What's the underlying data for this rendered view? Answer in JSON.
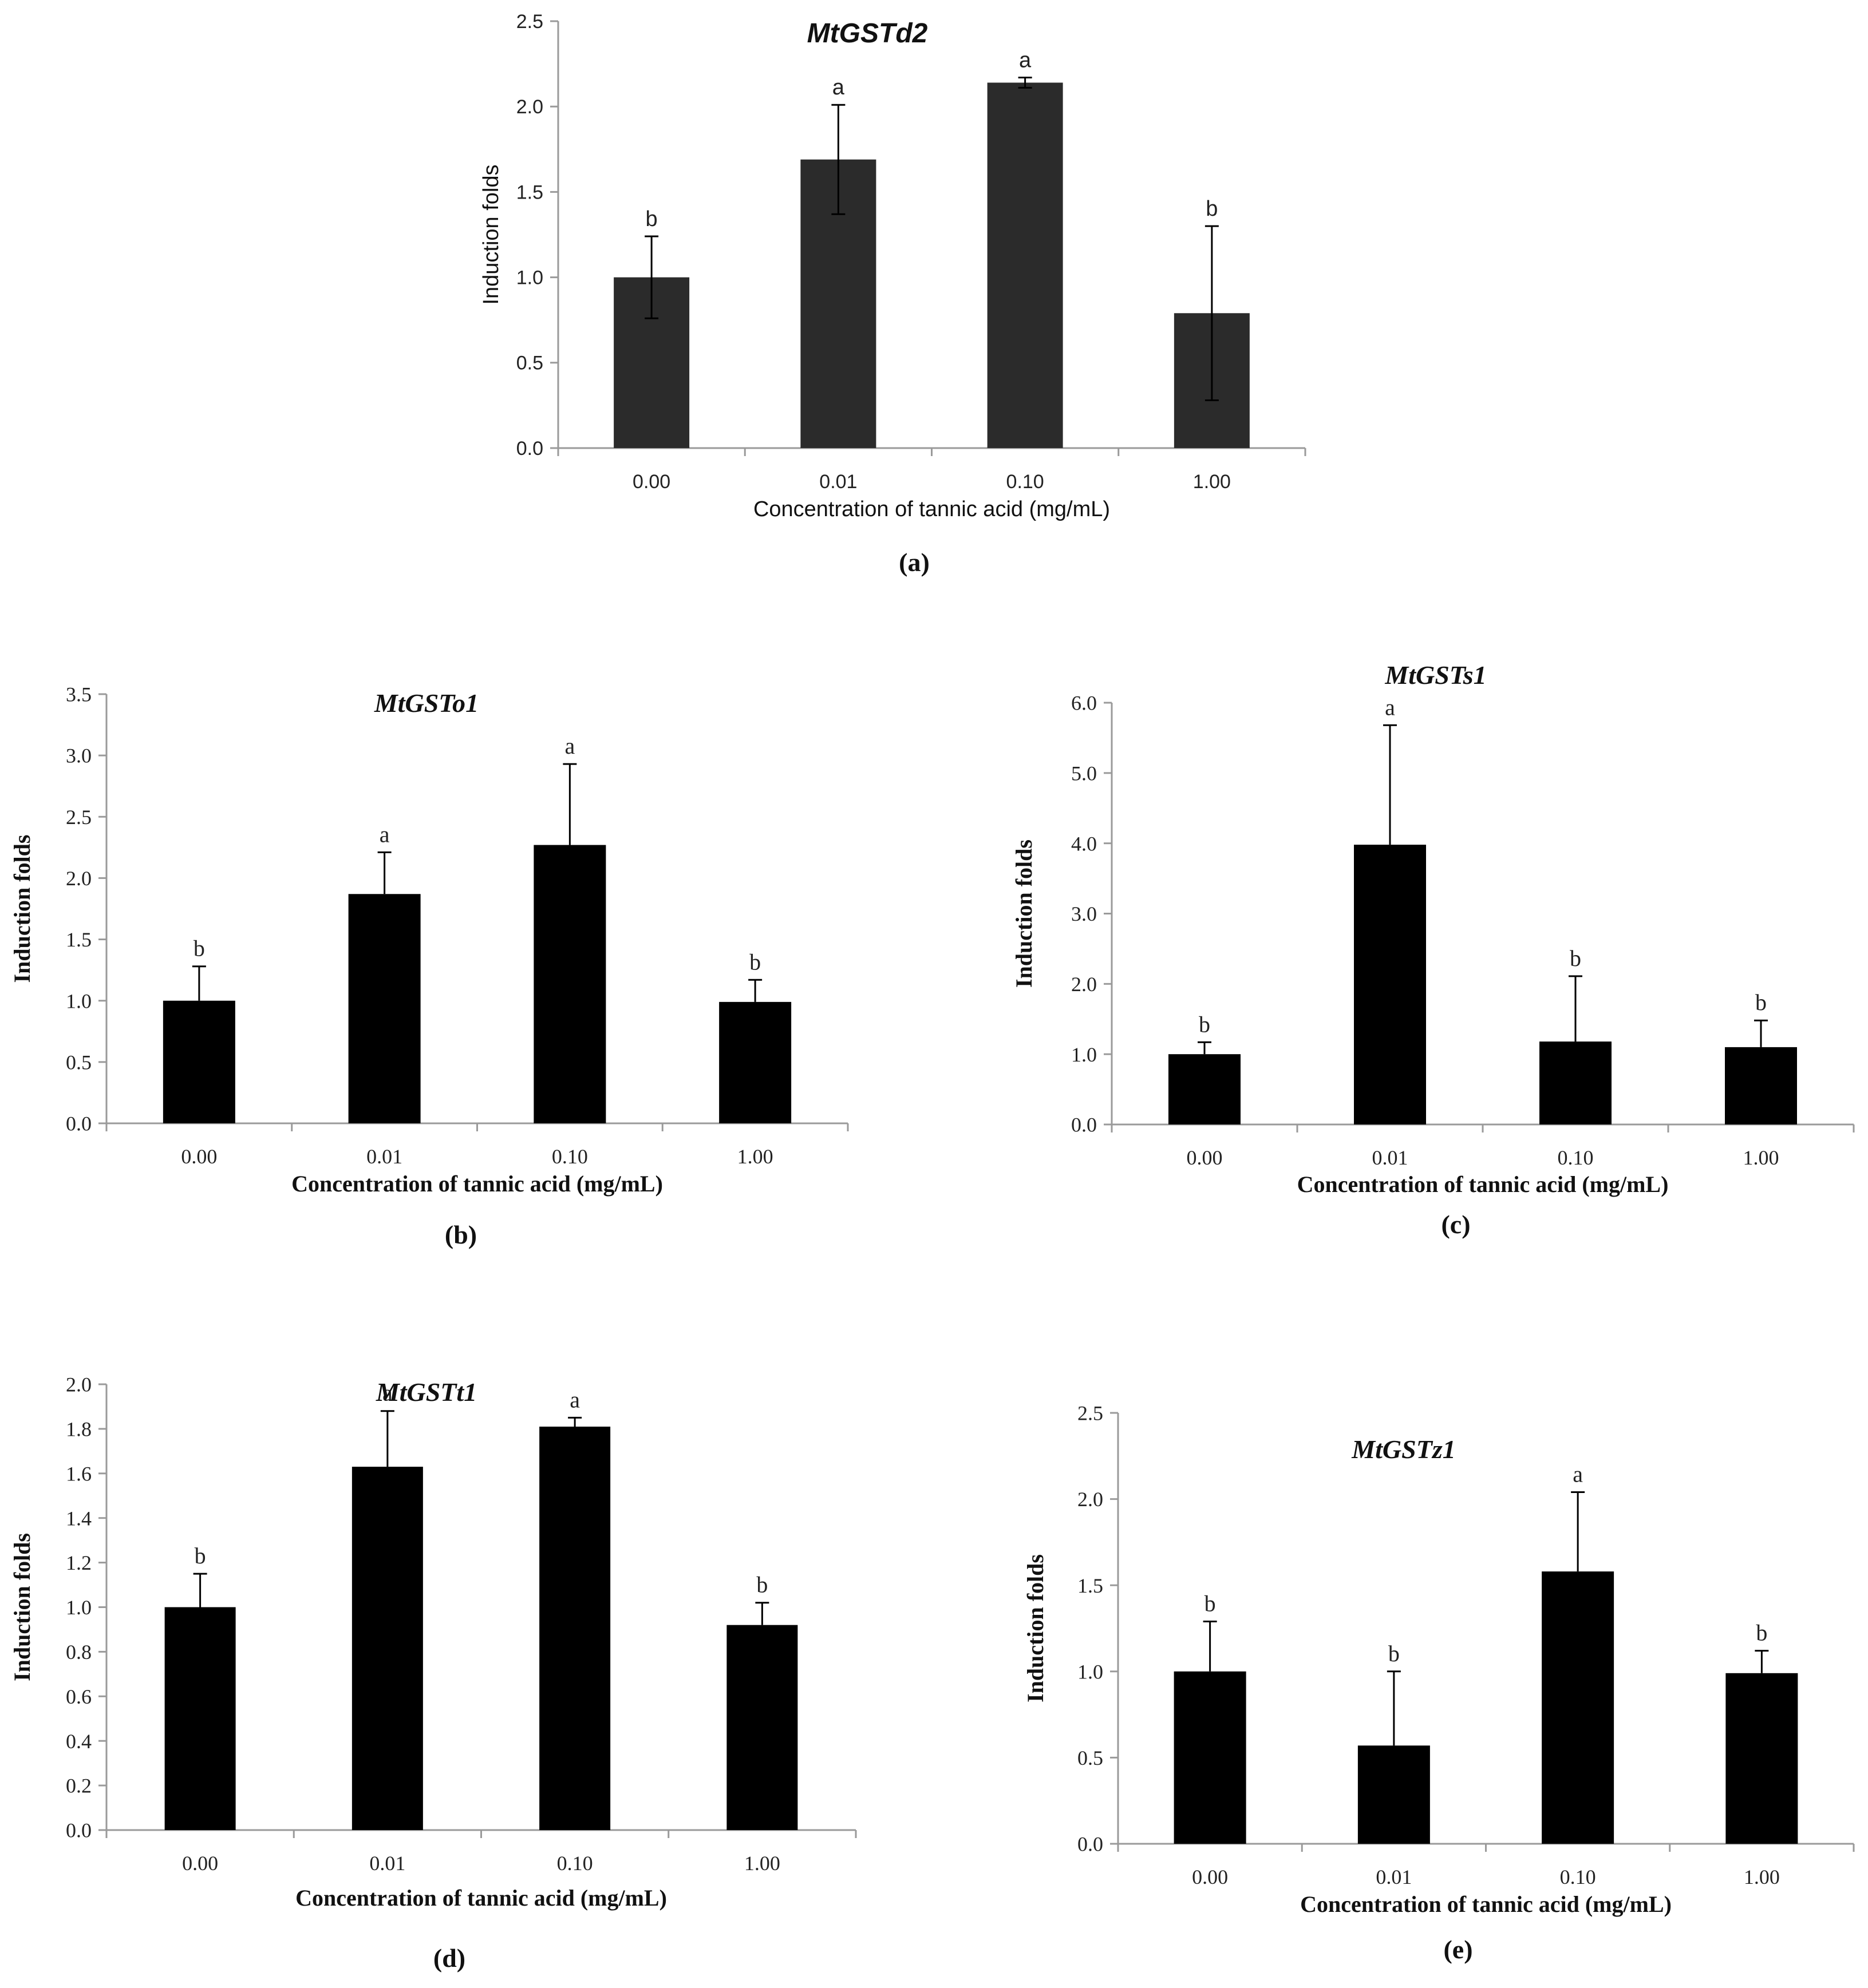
{
  "chart_data": [
    {
      "id": "a",
      "type": "bar",
      "title": "MtGSTd2",
      "panel_label": "(a)",
      "xlabel": "Concentration of tannic acid (mg/mL)",
      "ylabel": "Induction folds",
      "categories": [
        "0.00",
        "0.01",
        "0.10",
        "1.00"
      ],
      "values": [
        1.0,
        1.69,
        2.14,
        0.79
      ],
      "errors": [
        0.24,
        0.32,
        0.03,
        0.51
      ],
      "letters": [
        "b",
        "a",
        "a",
        "b"
      ],
      "ylim": [
        0,
        2.5
      ],
      "yticks": [
        "0.0",
        "0.5",
        "1.0",
        "1.5",
        "2.0",
        "2.5"
      ],
      "bar_color": "#2b2b2b"
    },
    {
      "id": "b",
      "type": "bar",
      "title": "MtGSTo1",
      "panel_label": "(b)",
      "xlabel": "Concentration of tannic acid (mg/mL)",
      "ylabel": "Induction folds",
      "categories": [
        "0.00",
        "0.01",
        "0.10",
        "1.00"
      ],
      "values": [
        1.0,
        1.87,
        2.27,
        0.99
      ],
      "errors": [
        0.28,
        0.34,
        0.66,
        0.18
      ],
      "letters": [
        "b",
        "a",
        "a",
        "b"
      ],
      "ylim": [
        0,
        3.5
      ],
      "yticks": [
        "0.0",
        "0.5",
        "1.0",
        "1.5",
        "2.0",
        "2.5",
        "3.0",
        "3.5"
      ],
      "bar_color": "#000000"
    },
    {
      "id": "c",
      "type": "bar",
      "title": "MtGSTs1",
      "panel_label": "(c)",
      "xlabel": "Concentration of tannic acid (mg/mL)",
      "ylabel": "Induction folds",
      "categories": [
        "0.00",
        "0.01",
        "0.10",
        "1.00"
      ],
      "values": [
        1.0,
        3.98,
        1.18,
        1.1
      ],
      "errors": [
        0.17,
        1.7,
        0.93,
        0.38
      ],
      "letters": [
        "b",
        "a",
        "b",
        "b"
      ],
      "ylim": [
        0,
        6.0
      ],
      "yticks": [
        "0.0",
        "1.0",
        "2.0",
        "3.0",
        "4.0",
        "5.0",
        "6.0"
      ],
      "bar_color": "#000000"
    },
    {
      "id": "d",
      "type": "bar",
      "title": "MtGSTt1",
      "panel_label": "(d)",
      "xlabel": "Concentration of tannic acid (mg/mL)",
      "ylabel": "Induction folds",
      "categories": [
        "0.00",
        "0.01",
        "0.10",
        "1.00"
      ],
      "values": [
        1.0,
        1.63,
        1.81,
        0.92
      ],
      "errors": [
        0.15,
        0.25,
        0.04,
        0.1
      ],
      "letters": [
        "b",
        "a",
        "a",
        "b"
      ],
      "ylim": [
        0,
        2.0
      ],
      "yticks": [
        "0.0",
        "0.2",
        "0.4",
        "0.6",
        "0.8",
        "1.0",
        "1.2",
        "1.4",
        "1.6",
        "1.8",
        "2.0"
      ],
      "bar_color": "#000000"
    },
    {
      "id": "e",
      "type": "bar",
      "title": "MtGSTz1",
      "panel_label": "(e)",
      "xlabel": "Concentration of tannic acid (mg/mL)",
      "ylabel": "Induction folds",
      "categories": [
        "0.00",
        "0.01",
        "0.10",
        "1.00"
      ],
      "values": [
        1.0,
        0.57,
        1.58,
        0.99
      ],
      "errors": [
        0.29,
        0.43,
        0.46,
        0.13
      ],
      "letters": [
        "b",
        "b",
        "a",
        "b"
      ],
      "ylim": [
        0,
        2.5
      ],
      "yticks": [
        "0.0",
        "0.5",
        "1.0",
        "1.5",
        "2.0",
        "2.5"
      ],
      "bar_color": "#000000"
    }
  ]
}
